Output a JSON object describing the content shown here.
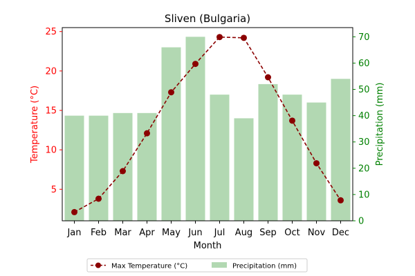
{
  "chart_data": {
    "type": "bar+line",
    "title": "Sliven (Bulgaria)",
    "xlabel": "Month",
    "categories": [
      "Jan",
      "Feb",
      "Mar",
      "Apr",
      "May",
      "Jun",
      "Jul",
      "Aug",
      "Sep",
      "Oct",
      "Nov",
      "Dec"
    ],
    "series": [
      {
        "name": "Max Temperature (°C)",
        "type": "line",
        "axis": "left",
        "color": "#8b0000",
        "line_style": "dashed",
        "marker": "circle",
        "values": [
          2.1,
          3.8,
          7.3,
          12.1,
          17.3,
          20.9,
          24.3,
          24.2,
          19.2,
          13.7,
          8.3,
          3.6
        ]
      },
      {
        "name": "Precipitation (mm)",
        "type": "bar",
        "axis": "right",
        "color": "#b2d8b2",
        "values": [
          40,
          40,
          41,
          41,
          66,
          70,
          48,
          39,
          52,
          48,
          45,
          54
        ]
      }
    ],
    "y_left": {
      "label": "Temperature (°C)",
      "color": "#ff0000",
      "ylim": [
        1.0,
        25.5
      ],
      "ticks": [
        5,
        10,
        15,
        20,
        25
      ]
    },
    "y_right": {
      "label": "Precipitation (mm)",
      "color": "#008000",
      "ylim": [
        0,
        73.5
      ],
      "ticks": [
        0,
        10,
        20,
        30,
        40,
        50,
        60,
        70
      ]
    },
    "grid": false,
    "legend_position": "bottom-center"
  }
}
